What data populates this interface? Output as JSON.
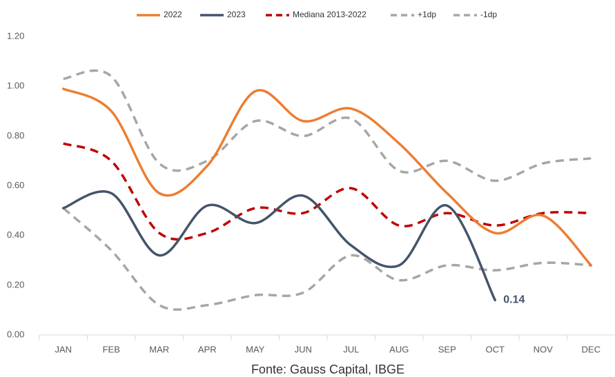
{
  "chart_data": {
    "type": "line",
    "categories": [
      "JAN",
      "FEB",
      "MAR",
      "APR",
      "MAY",
      "JUN",
      "JUL",
      "AUG",
      "SEP",
      "OCT",
      "NOV",
      "DEC"
    ],
    "series": [
      {
        "name": "2022",
        "color": "#ED7D31",
        "dash": false,
        "values": [
          0.99,
          0.9,
          0.57,
          0.68,
          0.98,
          0.86,
          0.91,
          0.77,
          0.57,
          0.41,
          0.48,
          0.28
        ]
      },
      {
        "name": "2023",
        "color": "#44546A",
        "dash": false,
        "values": [
          0.51,
          0.57,
          0.32,
          0.52,
          0.45,
          0.56,
          0.36,
          0.28,
          0.52,
          0.14,
          null,
          null
        ],
        "value_labels": [
          null,
          null,
          null,
          null,
          null,
          null,
          null,
          null,
          null,
          "0.14",
          null,
          null
        ]
      },
      {
        "name": "Mediana 2013-2022",
        "color": "#C00000",
        "dash": true,
        "values": [
          0.77,
          0.7,
          0.41,
          0.41,
          0.51,
          0.49,
          0.59,
          0.44,
          0.49,
          0.44,
          0.49,
          0.49
        ]
      },
      {
        "name": "+1dp",
        "color": "#A6A6A6",
        "dash": true,
        "values": [
          1.03,
          1.04,
          0.69,
          0.7,
          0.86,
          0.8,
          0.87,
          0.66,
          0.7,
          0.62,
          0.69,
          0.71
        ]
      },
      {
        "name": "-1dp",
        "color": "#A6A6A6",
        "dash": true,
        "values": [
          0.51,
          0.34,
          0.12,
          0.12,
          0.16,
          0.17,
          0.32,
          0.22,
          0.28,
          0.26,
          0.29,
          0.28
        ]
      }
    ],
    "ylim": [
      0,
      1.2
    ],
    "yticks": [
      {
        "value": 0,
        "label": "0.00"
      },
      {
        "value": 0.2,
        "label": "0.20"
      },
      {
        "value": 0.4,
        "label": "0.40"
      },
      {
        "value": 0.6,
        "label": "0.60"
      },
      {
        "value": 0.8,
        "label": "0.80"
      },
      {
        "value": 1.0,
        "label": "1.00"
      },
      {
        "value": 1.2,
        "label": "1.20"
      }
    ],
    "grid": false,
    "legend": "top",
    "source": "Fonte: Gauss Capital, IBGE"
  }
}
